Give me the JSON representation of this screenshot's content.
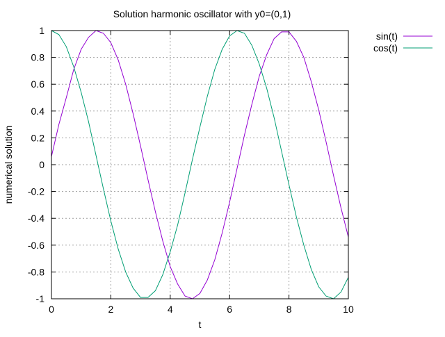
{
  "chart_data": {
    "type": "line",
    "title": "Solution harmonic oscillator with y0=(0,1)",
    "xlabel": "t",
    "ylabel": "numerical solution",
    "xlim": [
      0,
      10
    ],
    "ylim": [
      -1,
      1
    ],
    "xticks": [
      "0",
      "2",
      "4",
      "6",
      "8",
      "10"
    ],
    "yticks": [
      "1",
      "0.8",
      "0.6",
      "0.4",
      "0.2",
      "0",
      "-0.2",
      "-0.4",
      "-0.6",
      "-0.8",
      "-1"
    ],
    "grid": true,
    "legend_position": "outside-top-right",
    "x": [
      0,
      0.25,
      0.5,
      0.75,
      1,
      1.25,
      1.5,
      1.75,
      2,
      2.25,
      2.5,
      2.75,
      3,
      3.25,
      3.5,
      3.75,
      4,
      4.25,
      4.5,
      4.75,
      5,
      5.25,
      5.5,
      5.75,
      6,
      6.25,
      6.5,
      6.75,
      7,
      7.25,
      7.5,
      7.75,
      8,
      8.25,
      8.5,
      8.75,
      9,
      9.25,
      9.5,
      9.75,
      10
    ],
    "series": [
      {
        "name": "sin(t)",
        "color": "#9400d3",
        "values": [
          0.06,
          0.3,
          0.5,
          0.71,
          0.86,
          0.95,
          1.0,
          0.98,
          0.91,
          0.78,
          0.6,
          0.38,
          0.14,
          -0.11,
          -0.35,
          -0.57,
          -0.76,
          -0.89,
          -0.98,
          -1.0,
          -0.96,
          -0.86,
          -0.71,
          -0.51,
          -0.28,
          -0.03,
          0.22,
          0.45,
          0.66,
          0.82,
          0.94,
          0.99,
          0.99,
          0.92,
          0.8,
          0.62,
          0.41,
          0.17,
          -0.08,
          -0.32,
          -0.54
        ]
      },
      {
        "name": "cos(t)",
        "color": "#009e73",
        "values": [
          1.0,
          0.97,
          0.88,
          0.73,
          0.54,
          0.32,
          0.07,
          -0.18,
          -0.42,
          -0.63,
          -0.8,
          -0.92,
          -0.99,
          -0.99,
          -0.94,
          -0.82,
          -0.65,
          -0.45,
          -0.21,
          0.04,
          0.28,
          0.51,
          0.71,
          0.86,
          0.96,
          1.0,
          0.98,
          0.89,
          0.75,
          0.57,
          0.35,
          0.1,
          -0.15,
          -0.39,
          -0.6,
          -0.78,
          -0.91,
          -0.98,
          -1.0,
          -0.95,
          -0.84
        ]
      }
    ]
  }
}
